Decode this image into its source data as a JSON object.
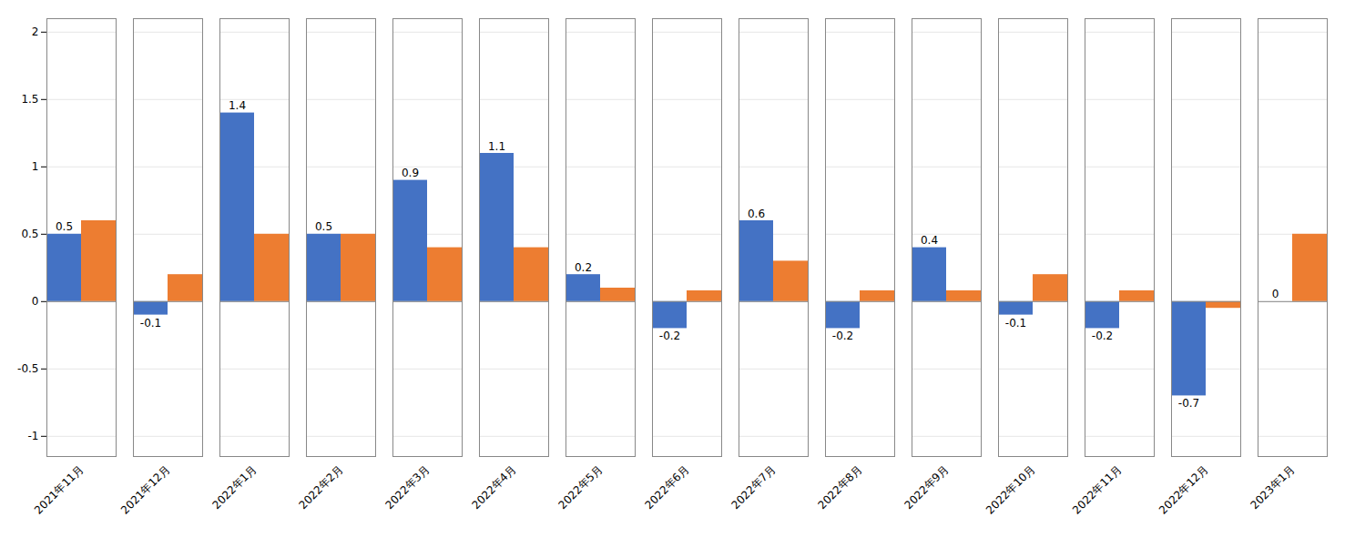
{
  "chart_data": {
    "type": "bar",
    "categories": [
      "2021年11月",
      "2021年12月",
      "2022年1月",
      "2022年2月",
      "2022年3月",
      "2022年4月",
      "2022年5月",
      "2022年6月",
      "2022年7月",
      "2022年8月",
      "2022年9月",
      "2022年10月",
      "2022年11月",
      "2022年12月",
      "2023年1月"
    ],
    "series": [
      {
        "color": "#4472C4",
        "values": [
          0.5,
          -0.1,
          1.4,
          0.5,
          0.9,
          1.1,
          0.2,
          -0.2,
          0.6,
          -0.2,
          0.4,
          -0.1,
          -0.2,
          -0.7,
          0.0
        ],
        "data_labels": true
      },
      {
        "color": "#ED7D31",
        "values": [
          0.6,
          0.2,
          0.5,
          0.5,
          0.4,
          0.4,
          0.1,
          0.08,
          0.3,
          0.08,
          0.08,
          0.2,
          0.08,
          -0.05,
          0.5
        ]
      }
    ],
    "ylim": [
      -1.15,
      2.1
    ],
    "yticks": [
      -1,
      -0.5,
      0,
      0.5,
      1,
      1.5,
      2
    ],
    "grid": true
  }
}
